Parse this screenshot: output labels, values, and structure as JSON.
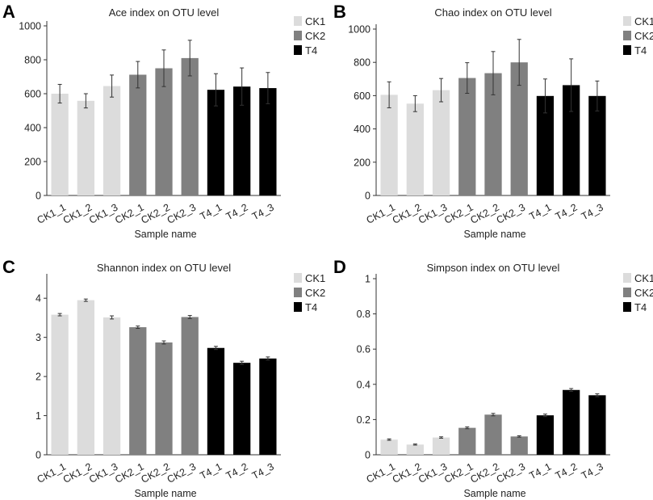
{
  "legend": [
    {
      "label": "CK1",
      "color": "#dcdcdc"
    },
    {
      "label": "CK2",
      "color": "#808080"
    },
    {
      "label": "T4",
      "color": "#000000"
    }
  ],
  "chart_data": [
    {
      "panel": "A",
      "type": "bar",
      "title": "Ace index on OTU level",
      "xlabel": "Sample name",
      "ylabel": "",
      "ylim": [
        0,
        1000
      ],
      "yticks": [
        0,
        200,
        400,
        600,
        800,
        1000
      ],
      "categories": [
        "CK1_1",
        "CK1_2",
        "CK1_3",
        "CK2_1",
        "CK2_2",
        "CK2_3",
        "T4_1",
        "T4_2",
        "T4_3"
      ],
      "groups": [
        "CK1",
        "CK1",
        "CK1",
        "CK2",
        "CK2",
        "CK2",
        "T4",
        "T4",
        "T4"
      ],
      "values": [
        600,
        558,
        645,
        712,
        750,
        810,
        623,
        642,
        633
      ],
      "errors": [
        55,
        42,
        65,
        78,
        108,
        105,
        95,
        110,
        92
      ]
    },
    {
      "panel": "B",
      "type": "bar",
      "title": "Chao index on OTU level",
      "xlabel": "Sample name",
      "ylabel": "",
      "ylim": [
        0,
        1000
      ],
      "yticks": [
        0,
        200,
        400,
        600,
        800,
        1000
      ],
      "categories": [
        "CK1_1",
        "CK1_2",
        "CK1_3",
        "CK2_1",
        "CK2_2",
        "CK2_3",
        "T4_1",
        "T4_2",
        "T4_3"
      ],
      "groups": [
        "CK1",
        "CK1",
        "CK1",
        "CK2",
        "CK2",
        "CK2",
        "T4",
        "T4",
        "T4"
      ],
      "values": [
        605,
        552,
        633,
        706,
        735,
        800,
        598,
        663,
        598
      ],
      "errors": [
        78,
        48,
        70,
        92,
        130,
        138,
        102,
        158,
        90
      ]
    },
    {
      "panel": "C",
      "type": "bar",
      "title": "Shannon index on OTU level",
      "xlabel": "Sample name",
      "ylabel": "",
      "ylim": [
        0,
        4.5
      ],
      "yticks": [
        0,
        1,
        2,
        3,
        4
      ],
      "categories": [
        "CK1_1",
        "CK1_2",
        "CK1_3",
        "CK2_1",
        "CK2_2",
        "CK2_3",
        "T4_1",
        "T4_2",
        "T4_3"
      ],
      "groups": [
        "CK1",
        "CK1",
        "CK1",
        "CK2",
        "CK2",
        "CK2",
        "T4",
        "T4",
        "T4"
      ],
      "values": [
        3.58,
        3.95,
        3.51,
        3.26,
        2.87,
        3.52,
        2.73,
        2.35,
        2.46
      ],
      "errors": [
        0.03,
        0.03,
        0.04,
        0.03,
        0.04,
        0.04,
        0.04,
        0.04,
        0.04
      ]
    },
    {
      "panel": "D",
      "type": "bar",
      "title": "Simpson index on OTU level",
      "xlabel": "Sample name",
      "ylabel": "",
      "ylim": [
        0,
        1
      ],
      "yticks": [
        0,
        0.2,
        0.4,
        0.6,
        0.8,
        1
      ],
      "categories": [
        "CK1_1",
        "CK1_2",
        "CK1_3",
        "CK2_1",
        "CK2_2",
        "CK2_3",
        "T4_1",
        "T4_2",
        "T4_3"
      ],
      "groups": [
        "CK1",
        "CK1",
        "CK1",
        "CK2",
        "CK2",
        "CK2",
        "T4",
        "T4",
        "T4"
      ],
      "values": [
        0.086,
        0.058,
        0.098,
        0.153,
        0.228,
        0.104,
        0.224,
        0.368,
        0.338
      ],
      "errors": [
        0.004,
        0.003,
        0.004,
        0.005,
        0.007,
        0.004,
        0.007,
        0.008,
        0.008
      ]
    }
  ]
}
